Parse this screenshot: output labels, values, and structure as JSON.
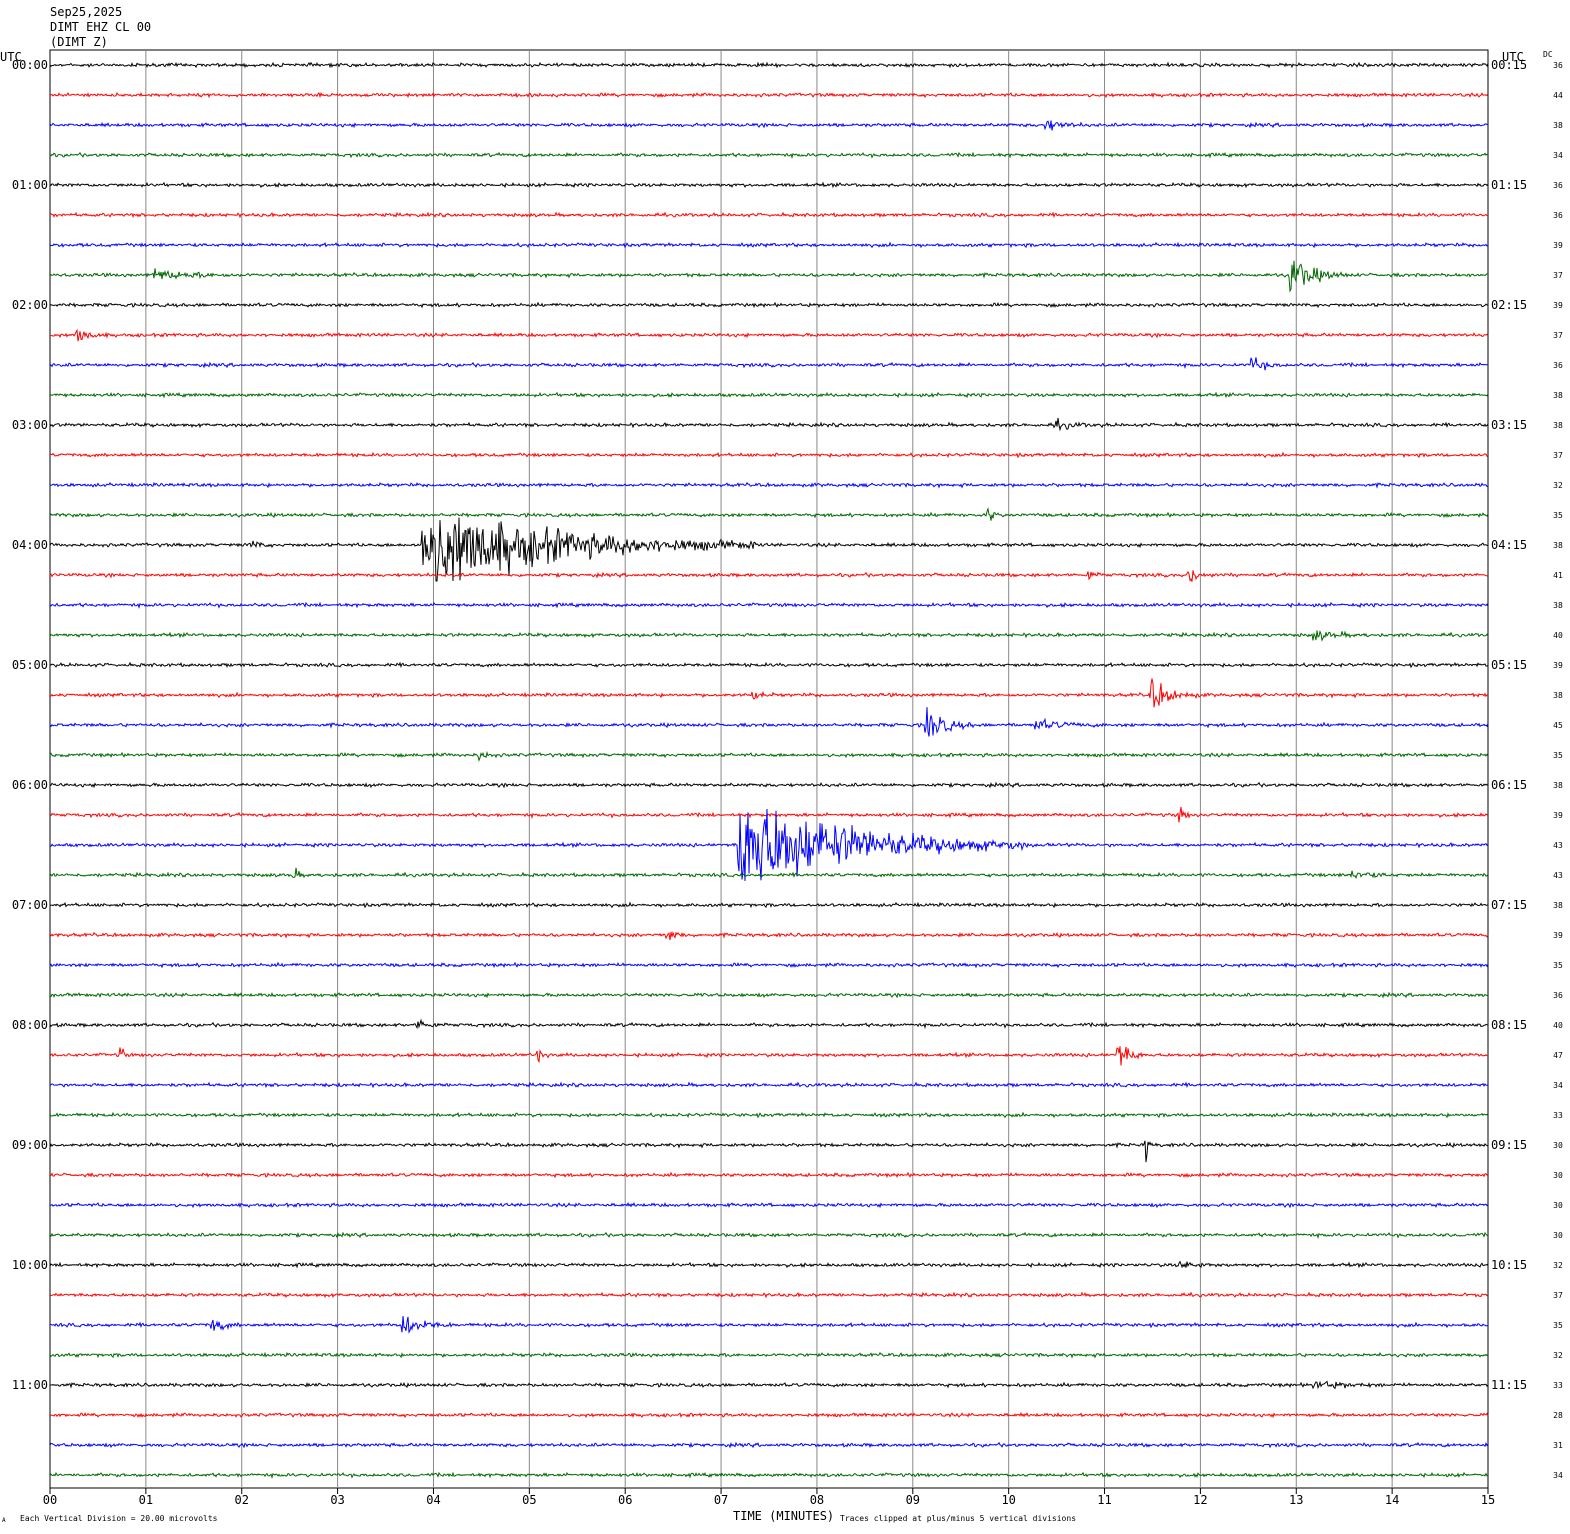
{
  "header": {
    "date": "Sep25,2025",
    "station_line": "DIMT EHZ CL 00",
    "component_line": "(DIMT Z)"
  },
  "axes": {
    "left_label": "UTC",
    "right_label": "UTC",
    "dc_label": "DC",
    "x_label": "TIME (MINUTES)"
  },
  "footer": {
    "scale_note": "Each Vertical Division =   20.00 microvolts",
    "clip_note": "Traces clipped at plus/minus 5 vertical divisions",
    "corner_mark": "A"
  },
  "chart_data": {
    "type": "line",
    "description_units": "helicorder: 48 traces, 15 minutes each, x in minutes",
    "x_range": [
      0,
      15
    ],
    "x_ticks": [
      "00",
      "01",
      "02",
      "03",
      "04",
      "05",
      "06",
      "07",
      "08",
      "09",
      "10",
      "11",
      "12",
      "13",
      "14",
      "15"
    ],
    "trace_colors": [
      "#000000",
      "#ff0000",
      "#0000ff",
      "#006600"
    ],
    "left_hour_labels": [
      "00:00",
      "01:00",
      "02:00",
      "03:00",
      "04:00",
      "05:00",
      "06:00",
      "07:00",
      "08:00",
      "09:00",
      "10:00",
      "11:00"
    ],
    "right_hour_labels": [
      "00:15",
      "01:15",
      "02:15",
      "03:15",
      "04:15",
      "05:15",
      "06:15",
      "07:15",
      "08:15",
      "09:15",
      "10:15",
      "11:15"
    ],
    "dc_values": [
      36,
      44,
      38,
      34,
      36,
      36,
      39,
      37,
      39,
      37,
      36,
      38,
      38,
      37,
      32,
      35,
      38,
      41,
      38,
      40,
      39,
      38,
      45,
      35,
      38,
      39,
      43,
      43,
      38,
      39,
      35,
      36,
      40,
      47,
      34,
      33,
      30,
      30,
      30,
      30,
      32,
      37,
      35,
      32,
      33,
      28,
      31,
      34
    ],
    "grid": true,
    "events": [
      {
        "trace": 2,
        "minute": 10.4,
        "amp": 1.0,
        "dur": 0.4
      },
      {
        "trace": 7,
        "minute": 1.1,
        "amp": 0.8,
        "dur": 1.0
      },
      {
        "trace": 7,
        "minute": 12.95,
        "amp": 3.0,
        "dur": 0.6
      },
      {
        "trace": 9,
        "minute": 0.3,
        "amp": 1.2,
        "dur": 0.3
      },
      {
        "trace": 10,
        "minute": 12.55,
        "amp": 1.0,
        "dur": 0.35
      },
      {
        "trace": 12,
        "minute": 10.5,
        "amp": 0.6,
        "dur": 0.5
      },
      {
        "trace": 15,
        "minute": 9.8,
        "amp": 1.0,
        "dur": 0.15
      },
      {
        "trace": 16,
        "minute": 3.9,
        "amp": 8.0,
        "dur": 3.5
      },
      {
        "trace": 16,
        "minute": 2.1,
        "amp": 0.8,
        "dur": 0.2
      },
      {
        "trace": 17,
        "minute": 11.9,
        "amp": 1.5,
        "dur": 0.25
      },
      {
        "trace": 17,
        "minute": 10.85,
        "amp": 0.8,
        "dur": 0.15
      },
      {
        "trace": 19,
        "minute": 13.2,
        "amp": 0.7,
        "dur": 0.6
      },
      {
        "trace": 21,
        "minute": 11.5,
        "amp": 2.5,
        "dur": 0.5
      },
      {
        "trace": 21,
        "minute": 7.35,
        "amp": 0.7,
        "dur": 0.2
      },
      {
        "trace": 22,
        "minute": 9.15,
        "amp": 2.8,
        "dur": 0.5
      },
      {
        "trace": 22,
        "minute": 10.3,
        "amp": 0.7,
        "dur": 0.7
      },
      {
        "trace": 23,
        "minute": 4.5,
        "amp": 0.7,
        "dur": 0.2
      },
      {
        "trace": 25,
        "minute": 11.8,
        "amp": 1.5,
        "dur": 0.1
      },
      {
        "trace": 26,
        "minute": 7.2,
        "amp": 9.0,
        "dur": 3.0
      },
      {
        "trace": 27,
        "minute": 2.55,
        "amp": 0.8,
        "dur": 0.15
      },
      {
        "trace": 27,
        "minute": 13.6,
        "amp": 0.7,
        "dur": 0.5
      },
      {
        "trace": 29,
        "minute": 6.45,
        "amp": 1.2,
        "dur": 0.2
      },
      {
        "trace": 32,
        "minute": 3.85,
        "amp": 0.8,
        "dur": 0.3
      },
      {
        "trace": 33,
        "minute": 0.75,
        "amp": 1.5,
        "dur": 0.05
      },
      {
        "trace": 33,
        "minute": 11.15,
        "amp": 2.5,
        "dur": 0.3
      },
      {
        "trace": 33,
        "minute": 5.1,
        "amp": 1.2,
        "dur": 0.1
      },
      {
        "trace": 36,
        "minute": 11.45,
        "amp": 2.2,
        "dur": 0.05
      },
      {
        "trace": 40,
        "minute": 11.8,
        "amp": 0.6,
        "dur": 0.4
      },
      {
        "trace": 42,
        "minute": 1.7,
        "amp": 1.2,
        "dur": 0.3
      },
      {
        "trace": 42,
        "minute": 3.7,
        "amp": 1.6,
        "dur": 0.5
      },
      {
        "trace": 44,
        "minute": 13.2,
        "amp": 0.6,
        "dur": 0.8
      }
    ]
  }
}
